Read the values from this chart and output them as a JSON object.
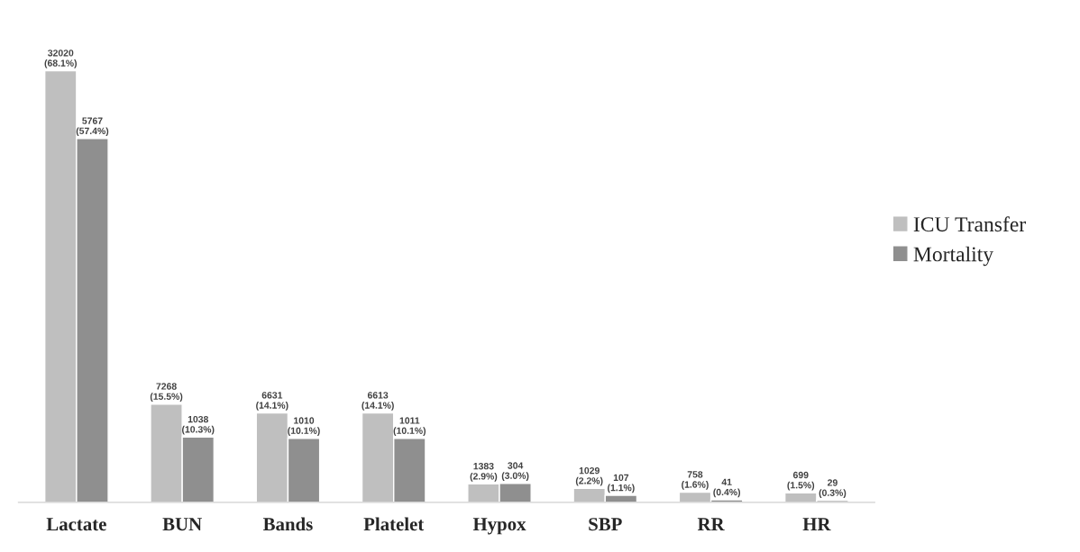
{
  "chart_data": {
    "type": "bar",
    "categories": [
      "Lactate",
      "BUN",
      "Bands",
      "Platelet",
      "Hypox",
      "SBP",
      "RR",
      "HR"
    ],
    "series": [
      {
        "name": "ICU Transfer",
        "color": "#bfbfbf",
        "values": [
          68.1,
          15.5,
          14.1,
          14.1,
          2.9,
          2.2,
          1.6,
          1.5
        ],
        "value_labels": [
          "32020\n(68.1%)",
          "7268\n(15.5%)",
          "6631\n(14.1%)",
          "6613\n(14.1%)",
          "1383\n(2.9%)",
          "1029\n(2.2%)",
          "758\n(1.6%)",
          "699\n(1.5%)"
        ]
      },
      {
        "name": "Mortality",
        "color": "#8f8f8f",
        "values": [
          57.4,
          10.3,
          10.1,
          10.1,
          3.0,
          1.1,
          0.4,
          0.3
        ],
        "value_labels": [
          "5767\n(57.4%)",
          "1038\n(10.3%)",
          "1010\n(10.1%)",
          "1011\n(10.1%)",
          "304\n(3.0%)",
          "107\n(1.1%)",
          "41\n(0.4%)",
          "29\n(0.3%)"
        ]
      }
    ],
    "legend": "right",
    "grid": false
  }
}
